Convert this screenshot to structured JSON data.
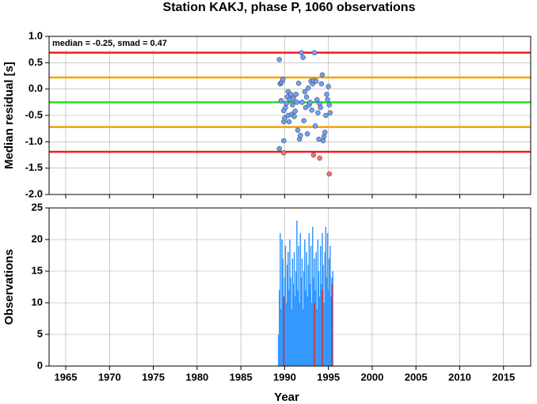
{
  "chart_data": [
    {
      "type": "scatter",
      "title": "Station KAKJ, phase P, 1060 observations",
      "ylabel": "Median residual [s]",
      "annotation": "median = -0.25, smad = 0.47",
      "xlim": [
        1963.1,
        2018.1
      ],
      "xticks": [
        1965,
        1970,
        1975,
        1980,
        1985,
        1990,
        1995,
        2000,
        2005,
        2010,
        2015
      ],
      "ylim": [
        -2.0,
        1.0
      ],
      "yticks": [
        {
          "value": 1.0,
          "label": "1.0"
        },
        0.5,
        {
          "value": 0.0,
          "label": "0.0"
        },
        -0.5,
        {
          "value": -1.0,
          "label": "-1.0"
        },
        -1.5,
        {
          "value": -2.0,
          "label": "-2.0"
        }
      ],
      "grid": true,
      "hlines": [
        {
          "value": 0.69,
          "color": "#ee1c1c"
        },
        {
          "value": 0.22,
          "color": "#f5a300"
        },
        {
          "value": -0.25,
          "color": "#22e01f"
        },
        {
          "value": -0.72,
          "color": "#f5a300"
        },
        {
          "value": -1.19,
          "color": "#ee1c1c"
        }
      ],
      "series": [
        {
          "color": "#6f9ff5",
          "x": [
            1989.4,
            1989.5,
            1989.6,
            1989.7,
            1989.8,
            1989.6,
            1989.9,
            1989.4,
            1989.9,
            1989.9,
            1990.0,
            1990.1,
            1990.2,
            1990.3,
            1990.4,
            1990.4,
            1990.5,
            1990.6,
            1990.7,
            1990.8,
            1990.9,
            1991.0,
            1991.1,
            1991.2,
            1991.3,
            1991.4,
            1991.5,
            1991.6,
            1991.7,
            1991.8,
            1991.9,
            1992.0,
            1992.1,
            1992.2,
            1992.3,
            1992.4,
            1992.5,
            1992.6,
            1992.7,
            1992.8,
            1992.9,
            1993.0,
            1993.1,
            1993.2,
            1993.3,
            1993.4,
            1993.5,
            1993.6,
            1993.7,
            1993.8,
            1993.9,
            1994.0,
            1994.1,
            1994.2,
            1994.3,
            1994.4,
            1994.5,
            1994.6,
            1994.7,
            1994.8,
            1994.9,
            1995.0,
            1995.1,
            1995.2
          ],
          "values": [
            0.56,
            0.1,
            0.12,
            0.14,
            0.19,
            -0.22,
            -0.41,
            -1.13,
            -0.98,
            -0.62,
            -0.55,
            -0.35,
            -0.27,
            -0.15,
            -0.05,
            -0.5,
            -0.62,
            -0.2,
            -0.1,
            -0.48,
            -0.3,
            -0.18,
            -0.52,
            -0.42,
            -0.1,
            -0.25,
            -0.78,
            0.11,
            -0.95,
            -0.88,
            0.69,
            -0.25,
            0.6,
            -0.6,
            -0.05,
            -0.35,
            -0.15,
            -0.85,
            0.02,
            -0.3,
            -0.25,
            0.15,
            -0.4,
            0.1,
            0.16,
            0.69,
            -0.7,
            0.15,
            -0.2,
            -0.45,
            -0.95,
            -0.28,
            -0.35,
            0.1,
            0.27,
            -0.98,
            -0.9,
            -0.82,
            -0.5,
            -0.1,
            -0.2,
            0.05,
            -0.3,
            -0.45
          ]
        },
        {
          "color": "#f56f6f",
          "x": [
            1989.9,
            1993.3,
            1994.0,
            1995.1
          ],
          "values": [
            -1.21,
            -1.25,
            -1.31,
            -1.61
          ]
        }
      ]
    },
    {
      "type": "bar",
      "ylabel": "Observations",
      "xlabel": "Year",
      "xlim": [
        1963.1,
        2018.1
      ],
      "xticks": [
        1965,
        1970,
        1975,
        1980,
        1985,
        1990,
        1995,
        2000,
        2005,
        2010,
        2015
      ],
      "ylim": [
        0,
        25
      ],
      "yticks": [
        0,
        5,
        10,
        15,
        20,
        25
      ],
      "grid": true,
      "series": [
        {
          "color": "#3399ff",
          "x": [
            1989.3,
            1989.4,
            1989.5,
            1989.6,
            1989.7,
            1989.8,
            1989.9,
            1990.0,
            1990.1,
            1990.2,
            1990.3,
            1990.4,
            1990.5,
            1990.6,
            1990.7,
            1990.8,
            1990.9,
            1991.0,
            1991.1,
            1991.2,
            1991.3,
            1991.4,
            1991.5,
            1991.6,
            1991.7,
            1991.8,
            1991.9,
            1992.0,
            1992.1,
            1992.2,
            1992.3,
            1992.4,
            1992.5,
            1992.6,
            1992.7,
            1992.8,
            1992.9,
            1993.0,
            1993.1,
            1993.2,
            1993.3,
            1993.4,
            1993.5,
            1993.6,
            1993.7,
            1993.8,
            1993.9,
            1994.0,
            1994.1,
            1994.2,
            1994.3,
            1994.4,
            1994.5,
            1994.6,
            1994.7,
            1994.8,
            1994.9,
            1995.0,
            1995.1,
            1995.2,
            1995.3,
            1995.4,
            1995.5
          ],
          "values": [
            5,
            12,
            21,
            9,
            20,
            17,
            11,
            14,
            19,
            10,
            16,
            18,
            12,
            20,
            14,
            9,
            17,
            13,
            18,
            11,
            15,
            23,
            12,
            19,
            10,
            21,
            14,
            17,
            9,
            15,
            20,
            12,
            18,
            11,
            16,
            21,
            13,
            19,
            10,
            22,
            14,
            17,
            12,
            18,
            9,
            20,
            15,
            11,
            19,
            13,
            21,
            16,
            10,
            18,
            22,
            14,
            21,
            12,
            17,
            19,
            11,
            14,
            15
          ]
        },
        {
          "color": "#ee2222",
          "x": [
            1989.9,
            1993.4,
            1994.3,
            1995.4
          ],
          "values": [
            11,
            10,
            12,
            13
          ]
        }
      ]
    }
  ]
}
